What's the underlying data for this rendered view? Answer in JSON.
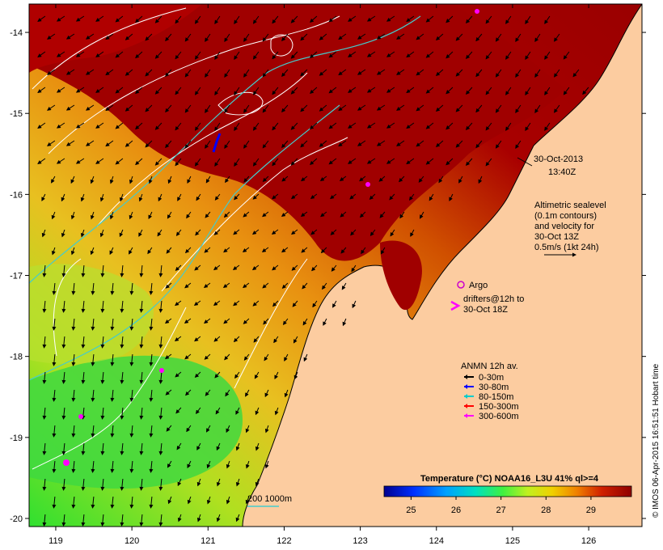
{
  "timestamp": {
    "date": "30-Oct-2013",
    "time": "13:40Z"
  },
  "altimetry": {
    "lines": [
      "Altimetric sealevel",
      "(0.1m contours)",
      "and velocity for",
      "30-Oct 13Z",
      "0.5m/s (1kt 24h)"
    ]
  },
  "argo": {
    "label": "Argo",
    "color": "#cc00cc"
  },
  "drifters": {
    "line1": "drifters@12h to",
    "line2": "30-Oct 18Z",
    "color": "#ff00ff"
  },
  "anmn": {
    "title": "ANMN 12h av.",
    "items": [
      {
        "label": "0-30m",
        "color": "#000000"
      },
      {
        "label": "30-80m",
        "color": "#0000ff"
      },
      {
        "label": "80-150m",
        "color": "#00cccc"
      },
      {
        "label": "150-300m",
        "color": "#ff0000"
      },
      {
        "label": "300-600m",
        "color": "#ff00ff"
      }
    ]
  },
  "colorbar": {
    "title": "Temperature (°C) NOAA16_L3U 41% ql>=4",
    "ticks": [
      "25",
      "26",
      "27",
      "28",
      "29"
    ],
    "range": [
      24.4,
      29.9
    ]
  },
  "isobath": {
    "label": "200  1000m",
    "color": "#44cccc"
  },
  "axes": {
    "lon_ticks": [
      "119",
      "120",
      "121",
      "122",
      "123",
      "124",
      "125",
      "126"
    ],
    "lat_ticks": [
      "-14",
      "-15",
      "-16",
      "-17",
      "-18",
      "-19",
      "-20"
    ],
    "lon_range": [
      118.65,
      126.7
    ],
    "lat_range": [
      -13.65,
      -20.1
    ]
  },
  "credit": "© IMOS 06-Apr-2015 16:51:51 Hobart time",
  "colors": {
    "land": "#fccca0",
    "warm": "#a00000",
    "mid": "#e08000",
    "cool": "#40e040",
    "coast": "#000000"
  }
}
